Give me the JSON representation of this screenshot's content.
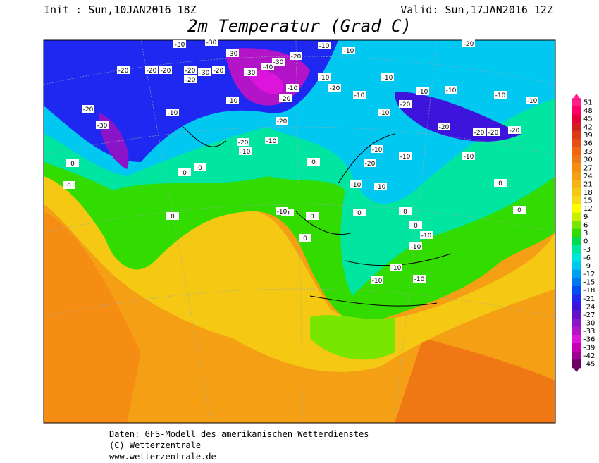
{
  "header": {
    "init": "Init : Sun,10JAN2016 18Z",
    "valid": "Valid: Sun,17JAN2016 12Z",
    "title": "2m Temperatur (Grad C)"
  },
  "map": {
    "contour_labels": [
      "-30",
      "-30",
      "-20",
      "-30",
      "-20",
      "-20",
      "-30",
      "-40",
      "-30",
      "-20",
      "-10",
      "-10",
      "-20",
      "-20",
      "-30",
      "-10",
      "-10",
      "-20",
      "-30",
      "-10",
      "-10",
      "-20",
      "-10",
      "-10",
      "-20",
      "-20",
      "-20",
      "-10",
      "-20",
      "-10",
      "-20",
      "-10",
      "-20",
      "-20",
      "-10",
      "-10",
      "-20",
      "-10",
      "-10",
      "-20",
      "-10",
      "-10",
      "-20",
      "-10",
      "-10",
      "-10",
      "-20",
      "0",
      "0",
      "0",
      "0",
      "0",
      "0",
      "0",
      "0",
      "0",
      "0",
      "0",
      "0",
      "0",
      "0",
      "-10",
      "-10",
      "-10",
      "-10",
      "-10",
      "-10"
    ]
  },
  "legend": {
    "labels": [
      51,
      48,
      45,
      42,
      39,
      36,
      33,
      30,
      27,
      24,
      21,
      18,
      15,
      12,
      9,
      6,
      3,
      0,
      -3,
      -6,
      -9,
      -12,
      -15,
      -18,
      -21,
      -24,
      -27,
      -30,
      -33,
      -36,
      -39,
      -42,
      -45
    ],
    "colors": [
      "#ff1e8c",
      "#ff0066",
      "#e6003c",
      "#d21e1e",
      "#dc3c14",
      "#e65014",
      "#f06414",
      "#f07814",
      "#f58c14",
      "#f5a014",
      "#f5b414",
      "#f5c814",
      "#f5dc14",
      "#ffff00",
      "#c8f000",
      "#78e600",
      "#32dc00",
      "#00dc50",
      "#00e6a0",
      "#00e6dc",
      "#00c8f0",
      "#00a0f0",
      "#0078f0",
      "#0050f0",
      "#1e28f0",
      "#3c14dc",
      "#6414c8",
      "#8c14c8",
      "#b414c8",
      "#dc14dc",
      "#c800b4",
      "#a00096",
      "#6e0064"
    ]
  },
  "footer": {
    "source": "Daten: GFS-Modell des amerikanischen Wetterdienstes",
    "copyright": "(C) Wetterzentrale",
    "url": "www.wetterzentrale.de"
  }
}
